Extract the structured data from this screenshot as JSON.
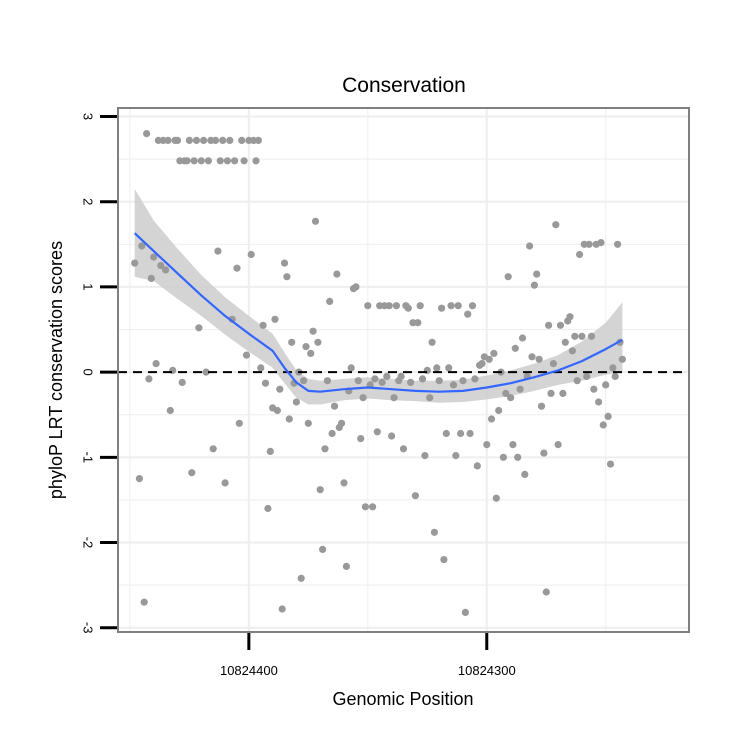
{
  "chart_data": {
    "type": "scatter",
    "title": "Conservation",
    "xlabel": "Genomic Position",
    "ylabel": "phyloP LRT conservation scores",
    "x_axis_reversed": true,
    "xlim": [
      10824455,
      10824215
    ],
    "ylim": [
      -3.05,
      3.1
    ],
    "x_ticks": [
      {
        "value": 10824400,
        "label": "10824400"
      },
      {
        "value": 10824300,
        "label": "10824300"
      }
    ],
    "y_ticks": [
      {
        "value": -3,
        "label": "-3"
      },
      {
        "value": -2,
        "label": "-2"
      },
      {
        "value": -1,
        "label": "-1"
      },
      {
        "value": 0,
        "label": "0"
      },
      {
        "value": 1,
        "label": "1"
      },
      {
        "value": 2,
        "label": "2"
      },
      {
        "value": 3,
        "label": "3"
      }
    ],
    "grid": true,
    "reference_line": {
      "y": 0,
      "style": "dashed",
      "color": "#000000"
    },
    "colors": {
      "points": "#999999",
      "smooth_line": "#3366ff",
      "confidence_band": "#cccccc",
      "panel_border": "#808080",
      "grid": "#eeeeee"
    },
    "points": [
      [
        10824448,
        1.28
      ],
      [
        10824446,
        -1.25
      ],
      [
        10824445,
        1.48
      ],
      [
        10824444,
        -2.7
      ],
      [
        10824443,
        2.8
      ],
      [
        10824442,
        -0.08
      ],
      [
        10824441,
        1.1
      ],
      [
        10824440,
        1.35
      ],
      [
        10824439,
        0.1
      ],
      [
        10824438,
        2.72
      ],
      [
        10824437,
        1.25
      ],
      [
        10824436,
        2.72
      ],
      [
        10824435,
        1.2
      ],
      [
        10824434,
        2.72
      ],
      [
        10824433,
        -0.45
      ],
      [
        10824432,
        0.02
      ],
      [
        10824431,
        2.72
      ],
      [
        10824430,
        2.72
      ],
      [
        10824429,
        2.48
      ],
      [
        10824428,
        -0.12
      ],
      [
        10824427,
        2.48
      ],
      [
        10824426,
        2.48
      ],
      [
        10824425,
        2.72
      ],
      [
        10824424,
        -1.18
      ],
      [
        10824423,
        2.48
      ],
      [
        10824422,
        2.72
      ],
      [
        10824421,
        0.52
      ],
      [
        10824420,
        2.48
      ],
      [
        10824419,
        2.72
      ],
      [
        10824418,
        0.0
      ],
      [
        10824417,
        2.48
      ],
      [
        10824416,
        2.72
      ],
      [
        10824415,
        -0.9
      ],
      [
        10824414,
        2.72
      ],
      [
        10824413,
        1.42
      ],
      [
        10824412,
        2.48
      ],
      [
        10824411,
        2.72
      ],
      [
        10824410,
        -1.3
      ],
      [
        10824409,
        2.48
      ],
      [
        10824408,
        2.72
      ],
      [
        10824407,
        0.62
      ],
      [
        10824406,
        2.48
      ],
      [
        10824405,
        1.22
      ],
      [
        10824404,
        -0.6
      ],
      [
        10824403,
        2.72
      ],
      [
        10824402,
        2.48
      ],
      [
        10824401,
        0.2
      ],
      [
        10824400,
        2.72
      ],
      [
        10824399,
        1.38
      ],
      [
        10824398,
        2.72
      ],
      [
        10824397,
        2.48
      ],
      [
        10824396,
        2.72
      ],
      [
        10824395,
        0.05
      ],
      [
        10824394,
        0.55
      ],
      [
        10824393,
        -0.13
      ],
      [
        10824392,
        -1.6
      ],
      [
        10824391,
        -0.93
      ],
      [
        10824390,
        -0.42
      ],
      [
        10824389,
        0.62
      ],
      [
        10824388,
        -0.45
      ],
      [
        10824387,
        -0.2
      ],
      [
        10824386,
        -2.78
      ],
      [
        10824385,
        1.28
      ],
      [
        10824384,
        1.12
      ],
      [
        10824383,
        -0.55
      ],
      [
        10824382,
        0.35
      ],
      [
        10824381,
        -0.13
      ],
      [
        10824380,
        -0.35
      ],
      [
        10824379,
        0.0
      ],
      [
        10824378,
        -2.42
      ],
      [
        10824377,
        -0.1
      ],
      [
        10824376,
        0.3
      ],
      [
        10824375,
        -0.6
      ],
      [
        10824374,
        0.22
      ],
      [
        10824373,
        0.48
      ],
      [
        10824372,
        1.77
      ],
      [
        10824371,
        0.35
      ],
      [
        10824370,
        -1.38
      ],
      [
        10824369,
        -2.08
      ],
      [
        10824368,
        -0.9
      ],
      [
        10824367,
        -0.1
      ],
      [
        10824366,
        0.83
      ],
      [
        10824365,
        -0.72
      ],
      [
        10824364,
        -0.4
      ],
      [
        10824363,
        1.15
      ],
      [
        10824362,
        -0.65
      ],
      [
        10824361,
        -0.6
      ],
      [
        10824360,
        -1.3
      ],
      [
        10824359,
        -2.28
      ],
      [
        10824358,
        -0.22
      ],
      [
        10824357,
        0.05
      ],
      [
        10824356,
        0.98
      ],
      [
        10824355,
        1.0
      ],
      [
        10824354,
        -0.1
      ],
      [
        10824353,
        -0.78
      ],
      [
        10824352,
        -0.3
      ],
      [
        10824351,
        -1.58
      ],
      [
        10824350,
        0.78
      ],
      [
        10824349,
        -0.15
      ],
      [
        10824348,
        -1.58
      ],
      [
        10824347,
        -0.08
      ],
      [
        10824346,
        -0.7
      ],
      [
        10824345,
        0.78
      ],
      [
        10824344,
        -0.12
      ],
      [
        10824343,
        0.78
      ],
      [
        10824342,
        -0.05
      ],
      [
        10824341,
        0.78
      ],
      [
        10824340,
        -0.75
      ],
      [
        10824339,
        -0.3
      ],
      [
        10824338,
        0.78
      ],
      [
        10824337,
        -0.1
      ],
      [
        10824336,
        -0.05
      ],
      [
        10824335,
        -0.9
      ],
      [
        10824334,
        0.78
      ],
      [
        10824333,
        0.75
      ],
      [
        10824332,
        -0.12
      ],
      [
        10824331,
        0.58
      ],
      [
        10824330,
        -1.45
      ],
      [
        10824329,
        0.58
      ],
      [
        10824328,
        0.78
      ],
      [
        10824327,
        -0.08
      ],
      [
        10824326,
        -0.98
      ],
      [
        10824325,
        0.02
      ],
      [
        10824324,
        -0.3
      ],
      [
        10824323,
        0.35
      ],
      [
        10824322,
        -1.88
      ],
      [
        10824321,
        0.05
      ],
      [
        10824320,
        -0.1
      ],
      [
        10824319,
        0.75
      ],
      [
        10824318,
        -2.2
      ],
      [
        10824317,
        -0.72
      ],
      [
        10824316,
        0.05
      ],
      [
        10824315,
        0.78
      ],
      [
        10824314,
        -0.15
      ],
      [
        10824313,
        -0.98
      ],
      [
        10824312,
        0.78
      ],
      [
        10824311,
        -0.72
      ],
      [
        10824310,
        -0.1
      ],
      [
        10824309,
        -2.82
      ],
      [
        10824308,
        0.68
      ],
      [
        10824307,
        -0.72
      ],
      [
        10824306,
        0.78
      ],
      [
        10824305,
        -0.08
      ],
      [
        10824304,
        -1.1
      ],
      [
        10824303,
        0.08
      ],
      [
        10824302,
        0.1
      ],
      [
        10824301,
        0.18
      ],
      [
        10824300,
        -0.85
      ],
      [
        10824299,
        0.15
      ],
      [
        10824298,
        -0.55
      ],
      [
        10824297,
        0.22
      ],
      [
        10824296,
        -1.48
      ],
      [
        10824295,
        -0.45
      ],
      [
        10824294,
        0.0
      ],
      [
        10824293,
        -1.0
      ],
      [
        10824292,
        -0.25
      ],
      [
        10824291,
        1.12
      ],
      [
        10824290,
        -0.3
      ],
      [
        10824289,
        -0.85
      ],
      [
        10824288,
        0.28
      ],
      [
        10824287,
        -1.0
      ],
      [
        10824286,
        -0.2
      ],
      [
        10824285,
        0.4
      ],
      [
        10824284,
        -1.2
      ],
      [
        10824283,
        -0.05
      ],
      [
        10824282,
        1.48
      ],
      [
        10824281,
        0.18
      ],
      [
        10824280,
        1.02
      ],
      [
        10824279,
        1.15
      ],
      [
        10824278,
        0.15
      ],
      [
        10824277,
        -0.4
      ],
      [
        10824276,
        -0.95
      ],
      [
        10824275,
        -2.58
      ],
      [
        10824274,
        0.55
      ],
      [
        10824273,
        -0.25
      ],
      [
        10824272,
        0.1
      ],
      [
        10824271,
        1.73
      ],
      [
        10824270,
        -0.85
      ],
      [
        10824269,
        0.55
      ],
      [
        10824268,
        -0.25
      ],
      [
        10824267,
        0.35
      ],
      [
        10824266,
        0.6
      ],
      [
        10824265,
        0.65
      ],
      [
        10824264,
        0.25
      ],
      [
        10824263,
        0.42
      ],
      [
        10824262,
        -0.1
      ],
      [
        10824261,
        1.38
      ],
      [
        10824260,
        0.42
      ],
      [
        10824259,
        1.5
      ],
      [
        10824258,
        -0.05
      ],
      [
        10824257,
        1.5
      ],
      [
        10824256,
        0.42
      ],
      [
        10824255,
        -0.2
      ],
      [
        10824254,
        1.5
      ],
      [
        10824253,
        -0.35
      ],
      [
        10824252,
        1.52
      ],
      [
        10824251,
        -0.62
      ],
      [
        10824250,
        -0.15
      ],
      [
        10824249,
        -0.52
      ],
      [
        10824248,
        -1.08
      ],
      [
        10824247,
        0.05
      ],
      [
        10824246,
        -0.05
      ],
      [
        10824245,
        1.5
      ],
      [
        10824244,
        0.35
      ],
      [
        10824243,
        0.15
      ]
    ],
    "smooth_curve": [
      [
        10824448,
        1.63
      ],
      [
        10824440,
        1.42
      ],
      [
        10824430,
        1.16
      ],
      [
        10824420,
        0.9
      ],
      [
        10824410,
        0.66
      ],
      [
        10824400,
        0.45
      ],
      [
        10824390,
        0.25
      ],
      [
        10824385,
        0.05
      ],
      [
        10824380,
        -0.12
      ],
      [
        10824375,
        -0.22
      ],
      [
        10824370,
        -0.23
      ],
      [
        10824360,
        -0.2
      ],
      [
        10824350,
        -0.18
      ],
      [
        10824340,
        -0.2
      ],
      [
        10824330,
        -0.22
      ],
      [
        10824320,
        -0.23
      ],
      [
        10824310,
        -0.22
      ],
      [
        10824300,
        -0.18
      ],
      [
        10824290,
        -0.13
      ],
      [
        10824280,
        -0.06
      ],
      [
        10824270,
        0.02
      ],
      [
        10824260,
        0.13
      ],
      [
        10824250,
        0.27
      ],
      [
        10824243,
        0.38
      ]
    ],
    "confidence_band": [
      [
        10824448,
        2.15,
        1.12
      ],
      [
        10824440,
        1.78,
        1.07
      ],
      [
        10824430,
        1.45,
        0.86
      ],
      [
        10824420,
        1.14,
        0.66
      ],
      [
        10824410,
        0.88,
        0.44
      ],
      [
        10824400,
        0.66,
        0.24
      ],
      [
        10824390,
        0.45,
        0.05
      ],
      [
        10824385,
        0.23,
        -0.13
      ],
      [
        10824380,
        0.02,
        -0.3
      ],
      [
        10824375,
        -0.08,
        -0.38
      ],
      [
        10824370,
        -0.1,
        -0.38
      ],
      [
        10824360,
        -0.08,
        -0.33
      ],
      [
        10824350,
        -0.06,
        -0.31
      ],
      [
        10824340,
        -0.08,
        -0.33
      ],
      [
        10824330,
        -0.1,
        -0.34
      ],
      [
        10824320,
        -0.1,
        -0.36
      ],
      [
        10824310,
        -0.09,
        -0.35
      ],
      [
        10824300,
        -0.04,
        -0.32
      ],
      [
        10824290,
        0.02,
        -0.28
      ],
      [
        10824280,
        0.1,
        -0.22
      ],
      [
        10824270,
        0.2,
        -0.15
      ],
      [
        10824260,
        0.36,
        -0.1
      ],
      [
        10824250,
        0.58,
        -0.03
      ],
      [
        10824243,
        0.82,
        0.0
      ]
    ]
  }
}
